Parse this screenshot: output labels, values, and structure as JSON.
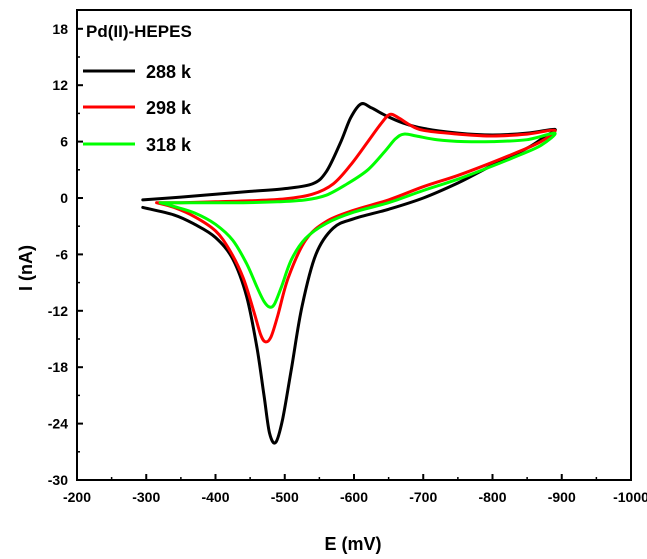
{
  "chart_data": {
    "type": "line",
    "xlabel": "E (mV)",
    "ylabel": "I (nA)",
    "xlim": [
      -200,
      -1000
    ],
    "ylim": [
      -30,
      20
    ],
    "x_ticks": [
      -200,
      -300,
      -400,
      -500,
      -600,
      -700,
      -800,
      -900,
      -1000
    ],
    "y_ticks": [
      -30,
      -24,
      -18,
      -12,
      -6,
      0,
      6,
      12,
      18
    ],
    "x_tick_labels": [
      "-200",
      "-300",
      "-400",
      "-500",
      "-600",
      "-700",
      "-800",
      "-900",
      "-1000"
    ],
    "y_tick_labels": [
      "-30",
      "-24",
      "-18",
      "-12",
      "-6",
      "0",
      "6",
      "12",
      "18"
    ],
    "legend": {
      "title": "Pd(II)-HEPES",
      "placement": "top-left"
    },
    "series": [
      {
        "name": "288 k",
        "color": "#000000",
        "points": [
          [
            -295,
            -0.2
          ],
          [
            -350,
            0.1
          ],
          [
            -400,
            0.4
          ],
          [
            -450,
            0.7
          ],
          [
            -500,
            1.0
          ],
          [
            -540,
            1.5
          ],
          [
            -560,
            2.8
          ],
          [
            -580,
            5.8
          ],
          [
            -595,
            8.5
          ],
          [
            -610,
            10.0
          ],
          [
            -625,
            9.6
          ],
          [
            -645,
            8.8
          ],
          [
            -670,
            8.0
          ],
          [
            -700,
            7.4
          ],
          [
            -750,
            6.9
          ],
          [
            -800,
            6.7
          ],
          [
            -850,
            6.9
          ],
          [
            -890,
            7.3
          ],
          [
            -875,
            6.5
          ],
          [
            -850,
            5.3
          ],
          [
            -800,
            3.5
          ],
          [
            -750,
            1.6
          ],
          [
            -700,
            0.0
          ],
          [
            -650,
            -1.2
          ],
          [
            -600,
            -2.2
          ],
          [
            -570,
            -3.2
          ],
          [
            -545,
            -6.0
          ],
          [
            -525,
            -11.5
          ],
          [
            -510,
            -18.0
          ],
          [
            -497,
            -23.5
          ],
          [
            -487,
            -26.0
          ],
          [
            -478,
            -25.0
          ],
          [
            -470,
            -21.0
          ],
          [
            -460,
            -16.0
          ],
          [
            -445,
            -10.5
          ],
          [
            -425,
            -6.5
          ],
          [
            -400,
            -4.2
          ],
          [
            -370,
            -2.8
          ],
          [
            -340,
            -1.8
          ],
          [
            -295,
            -1.0
          ]
        ]
      },
      {
        "name": "298 k",
        "color": "#ff0000",
        "points": [
          [
            -315,
            -0.5
          ],
          [
            -350,
            -0.5
          ],
          [
            -400,
            -0.4
          ],
          [
            -450,
            -0.3
          ],
          [
            -500,
            -0.1
          ],
          [
            -540,
            0.4
          ],
          [
            -570,
            1.5
          ],
          [
            -595,
            3.5
          ],
          [
            -620,
            6.0
          ],
          [
            -640,
            8.0
          ],
          [
            -652,
            8.9
          ],
          [
            -665,
            8.5
          ],
          [
            -680,
            7.8
          ],
          [
            -700,
            7.2
          ],
          [
            -750,
            6.8
          ],
          [
            -800,
            6.6
          ],
          [
            -850,
            6.8
          ],
          [
            -890,
            7.2
          ],
          [
            -870,
            6.0
          ],
          [
            -840,
            5.0
          ],
          [
            -800,
            3.8
          ],
          [
            -750,
            2.4
          ],
          [
            -700,
            1.2
          ],
          [
            -650,
            -0.2
          ],
          [
            -600,
            -1.3
          ],
          [
            -560,
            -2.5
          ],
          [
            -530,
            -4.5
          ],
          [
            -505,
            -8.5
          ],
          [
            -490,
            -12.5
          ],
          [
            -480,
            -14.8
          ],
          [
            -472,
            -15.3
          ],
          [
            -465,
            -14.5
          ],
          [
            -455,
            -12.0
          ],
          [
            -440,
            -8.5
          ],
          [
            -420,
            -5.5
          ],
          [
            -400,
            -3.5
          ],
          [
            -370,
            -2.0
          ],
          [
            -340,
            -1.0
          ],
          [
            -315,
            -0.5
          ]
        ]
      },
      {
        "name": "318 k",
        "color": "#00ff00",
        "points": [
          [
            -320,
            -0.5
          ],
          [
            -380,
            -0.5
          ],
          [
            -440,
            -0.5
          ],
          [
            -490,
            -0.4
          ],
          [
            -530,
            -0.2
          ],
          [
            -560,
            0.3
          ],
          [
            -590,
            1.5
          ],
          [
            -620,
            3.0
          ],
          [
            -645,
            5.0
          ],
          [
            -660,
            6.3
          ],
          [
            -672,
            6.8
          ],
          [
            -690,
            6.6
          ],
          [
            -720,
            6.2
          ],
          [
            -760,
            6.0
          ],
          [
            -800,
            6.0
          ],
          [
            -850,
            6.2
          ],
          [
            -890,
            6.9
          ],
          [
            -870,
            5.6
          ],
          [
            -840,
            4.6
          ],
          [
            -800,
            3.4
          ],
          [
            -750,
            2.0
          ],
          [
            -700,
            0.8
          ],
          [
            -650,
            -0.5
          ],
          [
            -600,
            -1.5
          ],
          [
            -560,
            -2.7
          ],
          [
            -530,
            -4.3
          ],
          [
            -510,
            -6.5
          ],
          [
            -495,
            -9.5
          ],
          [
            -485,
            -11.3
          ],
          [
            -478,
            -11.6
          ],
          [
            -470,
            -11.0
          ],
          [
            -460,
            -9.5
          ],
          [
            -445,
            -7.0
          ],
          [
            -425,
            -4.5
          ],
          [
            -400,
            -2.8
          ],
          [
            -370,
            -1.6
          ],
          [
            -340,
            -0.9
          ],
          [
            -320,
            -0.5
          ]
        ]
      }
    ]
  }
}
